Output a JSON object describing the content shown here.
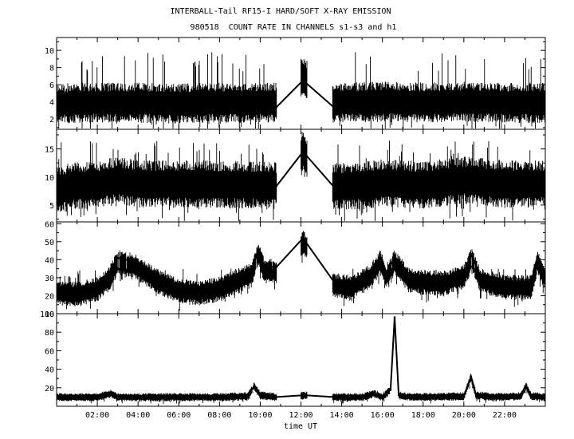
{
  "chart_data": {
    "type": "line",
    "title": "INTERBALL-Tail RF15-I HARD/SOFT X-RAY EMISSION",
    "subtitle": "980518  COUNT RATE IN CHANNELS s1-s3 and h1",
    "xlabel": "time UT",
    "x_unit": "hours UT",
    "xlim": [
      0,
      24
    ],
    "x_ticks": [
      {
        "value": 2,
        "label": "02:00"
      },
      {
        "value": 4,
        "label": "04:00"
      },
      {
        "value": 6,
        "label": "06:00"
      },
      {
        "value": 8,
        "label": "08:00"
      },
      {
        "value": 10,
        "label": "10:00"
      },
      {
        "value": 12,
        "label": "12:00"
      },
      {
        "value": 14,
        "label": "14:00"
      },
      {
        "value": 16,
        "label": "16:00"
      },
      {
        "value": 18,
        "label": "18:00"
      },
      {
        "value": 20,
        "label": "20:00"
      },
      {
        "value": 22,
        "label": "22:00"
      }
    ],
    "data_gaps": [
      [
        10.8,
        12.0
      ],
      [
        12.3,
        13.55
      ]
    ],
    "color": "#000000",
    "panels": [
      {
        "ylim": [
          0.8,
          11.5
        ],
        "y_ticks": [
          2,
          4,
          6,
          8,
          10
        ],
        "noise_band": [
          1.5,
          6.2
        ],
        "spike_max": 9.8,
        "series": [
          [
            0,
            3.3
          ],
          [
            2,
            3.4
          ],
          [
            4,
            3.4
          ],
          [
            6,
            3.3
          ],
          [
            8,
            3.4
          ],
          [
            10,
            3.4
          ],
          [
            10.8,
            3.4
          ],
          [
            12.1,
            6.5
          ],
          [
            13.6,
            3.4
          ],
          [
            16,
            3.5
          ],
          [
            18,
            3.4
          ],
          [
            20,
            3.5
          ],
          [
            22,
            3.4
          ],
          [
            24,
            3.4
          ]
        ]
      },
      {
        "ylim": [
          2,
          18.5
        ],
        "y_ticks": [
          5,
          10,
          15
        ],
        "noise_band": [
          4.5,
          13.0
        ],
        "spike_max": 16.5,
        "series": [
          [
            0,
            7.8
          ],
          [
            1,
            8.5
          ],
          [
            2,
            8.6
          ],
          [
            3,
            9.5
          ],
          [
            4,
            8.8
          ],
          [
            6,
            8.8
          ],
          [
            8,
            8.7
          ],
          [
            10,
            8.6
          ],
          [
            10.8,
            8.4
          ],
          [
            12.1,
            14.5
          ],
          [
            13.6,
            8.3
          ],
          [
            15,
            8.5
          ],
          [
            16,
            9.0
          ],
          [
            18,
            8.6
          ],
          [
            20,
            9.5
          ],
          [
            22,
            8.8
          ],
          [
            24,
            8.8
          ]
        ]
      },
      {
        "ylim": [
          10,
          61
        ],
        "y_ticks": [
          10,
          20,
          30,
          40,
          50,
          60
        ],
        "noise_band": [
          17,
          31
        ],
        "spike_max": 35,
        "series": [
          [
            0,
            24
          ],
          [
            1,
            23
          ],
          [
            2,
            26
          ],
          [
            2.6,
            32
          ],
          [
            3.0,
            41
          ],
          [
            3.8,
            39
          ],
          [
            5,
            30
          ],
          [
            6,
            25
          ],
          [
            7,
            24
          ],
          [
            8,
            26
          ],
          [
            9,
            31
          ],
          [
            9.6,
            34
          ],
          [
            9.9,
            46
          ],
          [
            10.2,
            36
          ],
          [
            10.8,
            36
          ],
          [
            12.1,
            52
          ],
          [
            13.6,
            28
          ],
          [
            14.5,
            27
          ],
          [
            15.4,
            33
          ],
          [
            15.9,
            41
          ],
          [
            16.2,
            33
          ],
          [
            16.6,
            41
          ],
          [
            17.3,
            31
          ],
          [
            18,
            30
          ],
          [
            19,
            29
          ],
          [
            20,
            33
          ],
          [
            20.4,
            43
          ],
          [
            20.8,
            31
          ],
          [
            22,
            27
          ],
          [
            23.3,
            27
          ],
          [
            23.6,
            41
          ],
          [
            24,
            32
          ]
        ]
      },
      {
        "ylim": [
          0,
          100
        ],
        "y_ticks": [
          20,
          40,
          60,
          80,
          100
        ],
        "noise_band": [
          5,
          14
        ],
        "spike_max": 14,
        "series": [
          [
            0,
            10
          ],
          [
            2,
            10
          ],
          [
            2.7,
            14
          ],
          [
            3,
            10
          ],
          [
            5,
            10
          ],
          [
            8,
            10
          ],
          [
            9.4,
            11
          ],
          [
            9.7,
            22
          ],
          [
            10,
            12
          ],
          [
            10.8,
            10
          ],
          [
            12.15,
            12
          ],
          [
            13.6,
            10
          ],
          [
            15,
            10
          ],
          [
            15.6,
            14
          ],
          [
            16,
            10
          ],
          [
            16.4,
            18
          ],
          [
            16.6,
            96
          ],
          [
            16.8,
            12
          ],
          [
            17.5,
            10
          ],
          [
            20,
            11
          ],
          [
            20.35,
            32
          ],
          [
            20.6,
            12
          ],
          [
            21.5,
            10
          ],
          [
            22.8,
            11
          ],
          [
            23.05,
            22
          ],
          [
            23.3,
            11
          ],
          [
            24,
            10
          ]
        ]
      }
    ]
  }
}
